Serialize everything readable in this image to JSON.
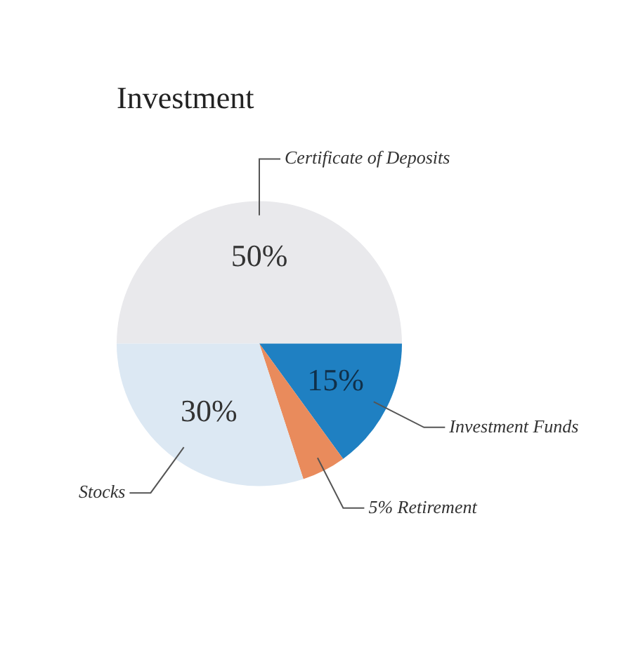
{
  "chart_data": {
    "type": "pie",
    "title": "Investment",
    "categories": [
      "Certificate of Deposits",
      "Investment Funds",
      "5% Retirement",
      "Stocks"
    ],
    "values": [
      50,
      15,
      5,
      30
    ],
    "colors": [
      "#e9e9ec",
      "#1f80c2",
      "#e98b5c",
      "#dce8f3"
    ],
    "value_labels": [
      "50%",
      "15%",
      null,
      "30%"
    ],
    "legend": false
  }
}
